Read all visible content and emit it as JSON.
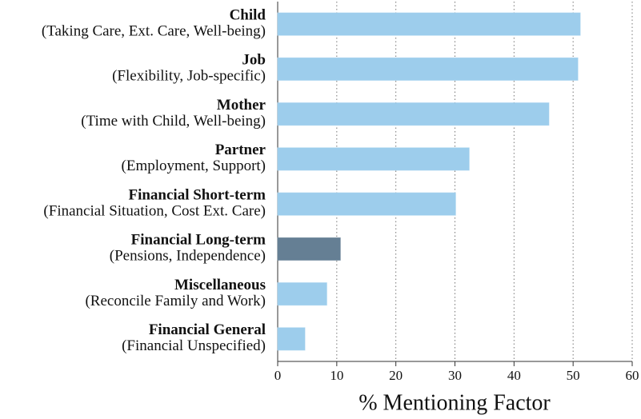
{
  "chart_data": {
    "type": "barh",
    "categories": [
      "Child",
      "Job",
      "Mother",
      "Partner",
      "Financial Short-term",
      "Financial Long-term",
      "Miscellaneous",
      "Financial General"
    ],
    "details": [
      "(Taking Care, Ext. Care, Well-being)",
      "(Flexibility, Job-specific)",
      "(Time with Child, Well-being)",
      "(Employment, Support)",
      "(Financial Situation, Cost Ext. Care)",
      "(Pensions, Independence)",
      "(Reconcile Family and Work)",
      "(Financial Unspecified)"
    ],
    "values": [
      51.2,
      50.8,
      45.9,
      32.4,
      30.1,
      10.6,
      8.3,
      4.6
    ],
    "colors": [
      "#9dcdec",
      "#9dcdec",
      "#9dcdec",
      "#9dcdec",
      "#9dcdec",
      "#657f94",
      "#9dcdec",
      "#9dcdec"
    ],
    "xlabel": "% Mentioning Factor",
    "xlim": [
      0,
      60
    ],
    "xticks": [
      0,
      10,
      20,
      30,
      40,
      50,
      60
    ],
    "grid": true
  }
}
